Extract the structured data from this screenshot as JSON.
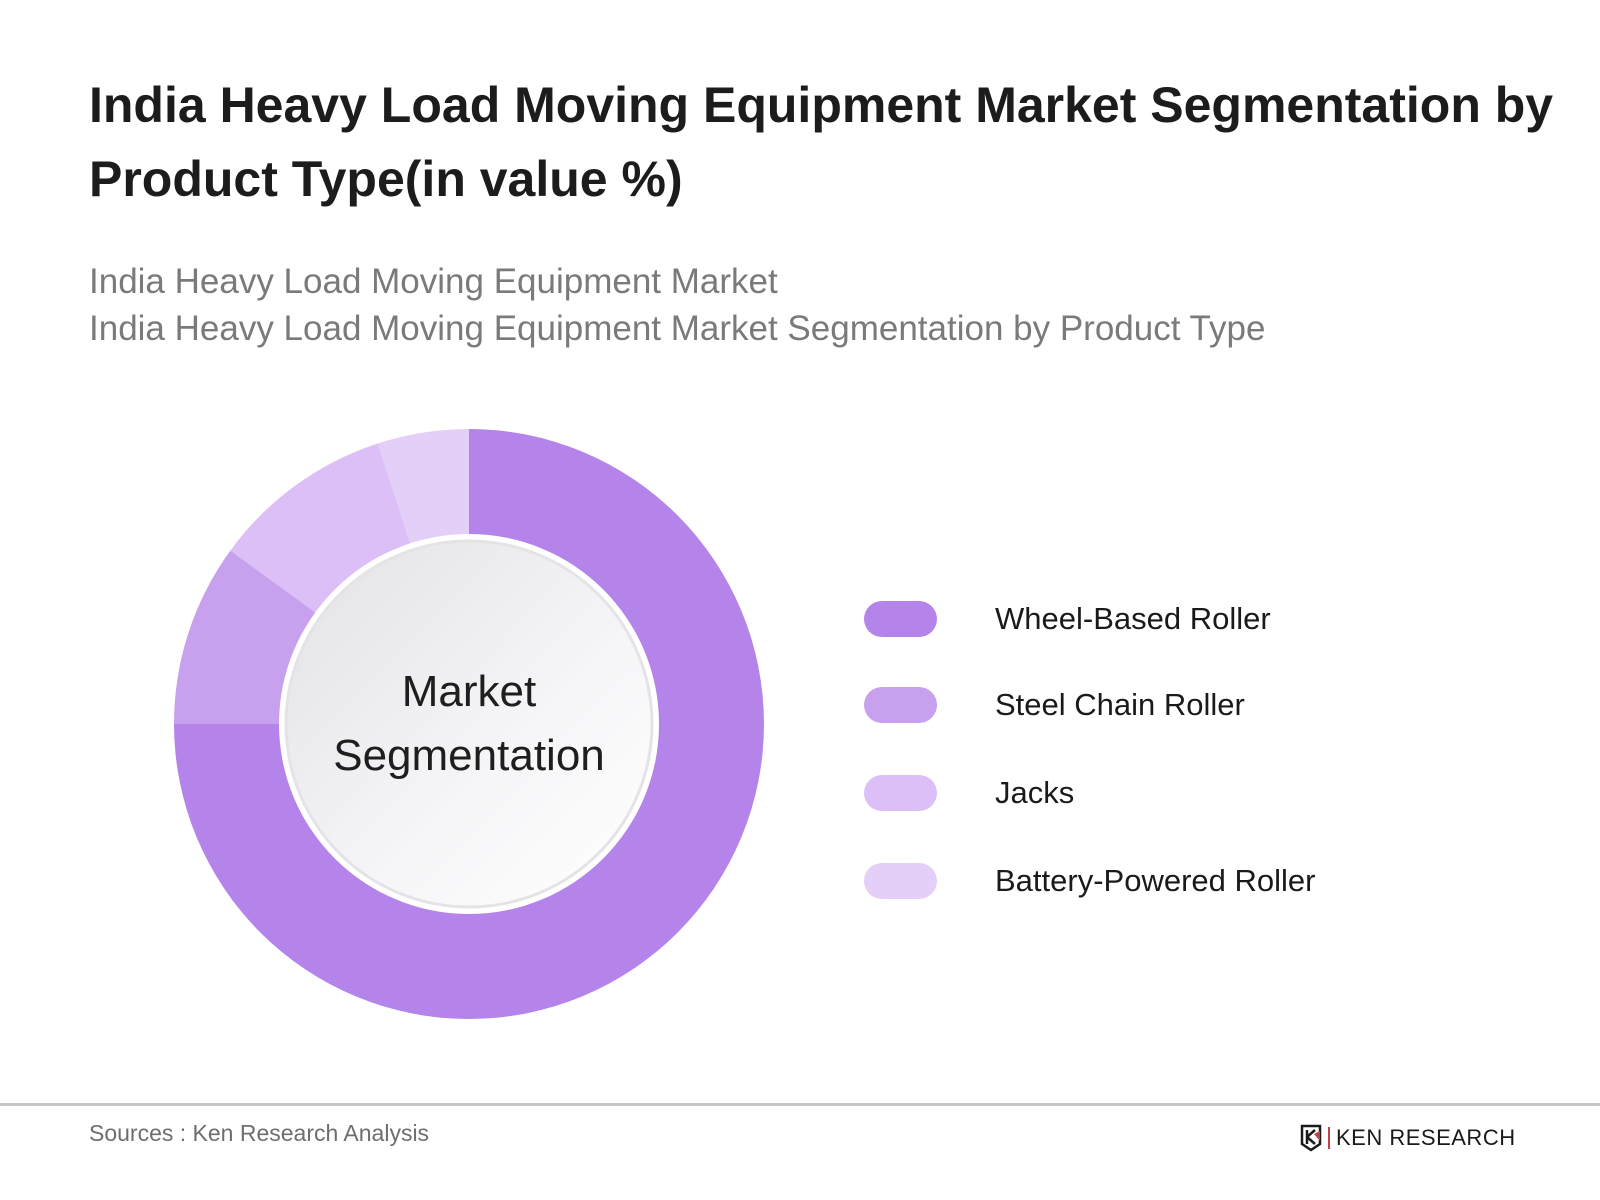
{
  "title": "India Heavy Load Moving Equipment Market Segmentation by Product Type(in value %)",
  "subtitle_1": "India Heavy Load Moving Equipment Market",
  "subtitle_2": "India Heavy Load Moving Equipment Market Segmentation by Product Type",
  "center_label_1": "Market",
  "center_label_2": "Segmentation",
  "source": "Sources : Ken Research Analysis",
  "logo_text": "KEN RESEARCH",
  "chart_data": {
    "type": "pie",
    "variant": "donut",
    "title": "India Heavy Load Moving Equipment Market Segmentation by Product Type(in value %)",
    "unit": "%",
    "legend_position": "right",
    "categories": [
      "Wheel-Based Roller",
      "Steel Chain Roller",
      "Jacks",
      "Battery-Powered Roller"
    ],
    "values": [
      75,
      10,
      10,
      5
    ],
    "colors": [
      "#b584ea",
      "#c7a0ee",
      "#dbbff6",
      "#e3cff8"
    ]
  }
}
